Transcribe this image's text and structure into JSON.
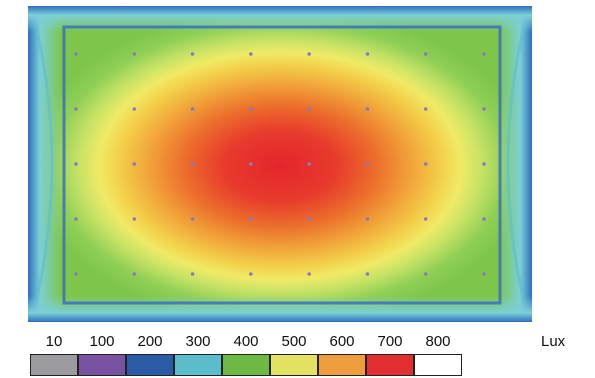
{
  "chart_data": {
    "type": "heatmap",
    "title": "",
    "unit": "Lux",
    "legend": [
      {
        "label": "10",
        "color": "#9a9a9f"
      },
      {
        "label": "100",
        "color": "#7a52a2"
      },
      {
        "label": "200",
        "color": "#2b5aa6"
      },
      {
        "label": "300",
        "color": "#5bbccc"
      },
      {
        "label": "400",
        "color": "#6db944"
      },
      {
        "label": "500",
        "color": "#e3e162"
      },
      {
        "label": "600",
        "color": "#ed9d3c"
      },
      {
        "label": "700",
        "color": "#e02e31"
      },
      {
        "label": "800",
        "color": "#ffffff"
      }
    ],
    "grid_points": {
      "columns": 8,
      "rows": 5
    },
    "peak_lux": 700,
    "edge_lux": 300
  }
}
